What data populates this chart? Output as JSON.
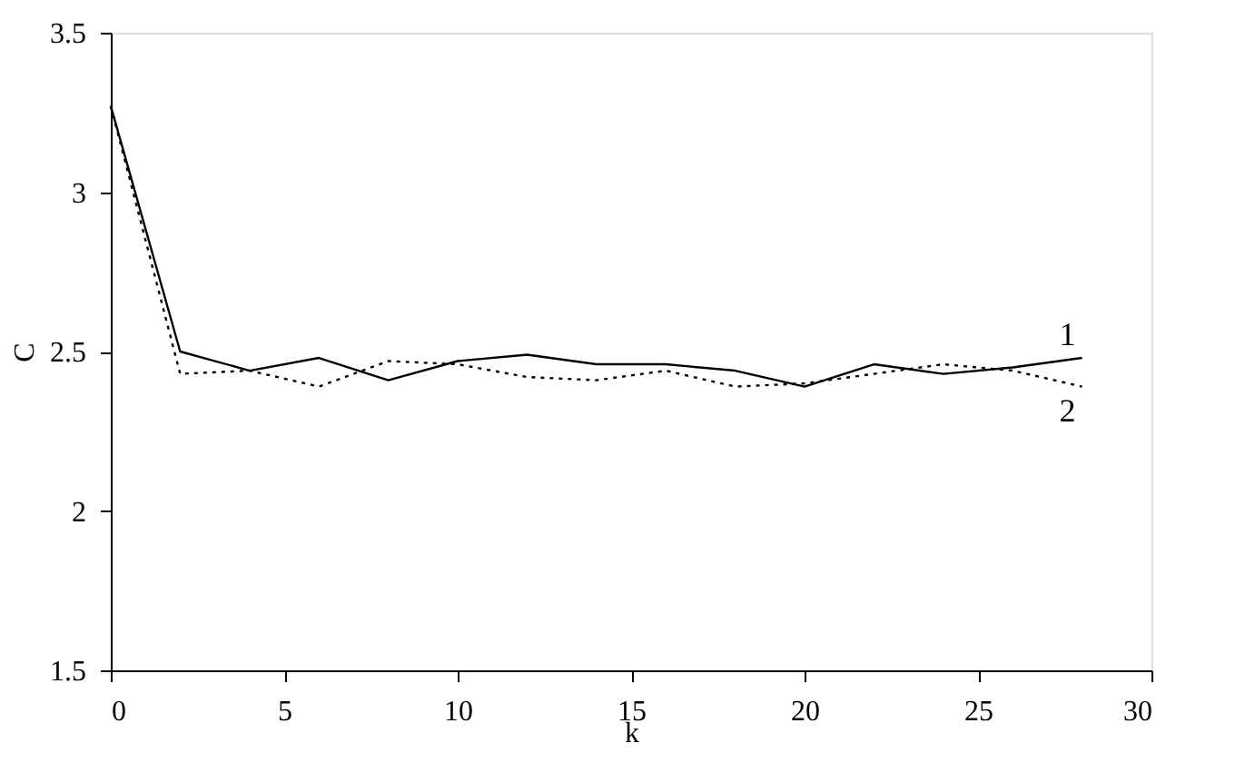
{
  "chart_data": {
    "type": "line",
    "xlabel": "k",
    "ylabel": "C",
    "xlim": [
      0,
      30
    ],
    "ylim": [
      1.5,
      3.5
    ],
    "xticks": [
      0,
      5,
      10,
      15,
      20,
      25,
      30
    ],
    "yticks": [
      1.5,
      2,
      2.5,
      3,
      3.5
    ],
    "grid": false,
    "legend": false,
    "marker": "none",
    "x": [
      0,
      2,
      4,
      6,
      8,
      10,
      12,
      14,
      16,
      18,
      20,
      22,
      24,
      26,
      28
    ],
    "series": [
      {
        "name": "1",
        "color": "#000000",
        "line_style": "solid",
        "values": [
          3.27,
          2.5,
          2.44,
          2.48,
          2.41,
          2.47,
          2.49,
          2.46,
          2.46,
          2.44,
          2.39,
          2.46,
          2.43,
          2.45,
          2.48
        ]
      },
      {
        "name": "2",
        "color": "#000000",
        "line_style": "dotted",
        "values": [
          3.27,
          2.43,
          2.44,
          2.39,
          2.47,
          2.46,
          2.42,
          2.41,
          2.44,
          2.39,
          2.4,
          2.43,
          2.46,
          2.44,
          2.39
        ]
      }
    ]
  }
}
